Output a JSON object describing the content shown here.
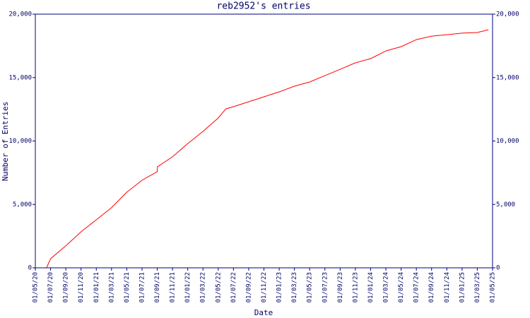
{
  "chart_data": {
    "type": "line",
    "title": "reb2952's entries",
    "x_label": "Date",
    "y_label": "Number of Entries",
    "x": [
      "15/06/20",
      "01/07/20",
      "01/09/20",
      "01/11/20",
      "01/01/21",
      "01/03/21",
      "01/05/21",
      "01/07/21",
      "01/09/21",
      "02/09/21",
      "01/11/21",
      "01/01/22",
      "01/03/22",
      "01/05/22",
      "01/06/22",
      "01/07/22",
      "01/09/22",
      "01/11/22",
      "01/01/23",
      "01/03/23",
      "01/05/23",
      "01/07/23",
      "01/09/23",
      "01/11/23",
      "01/01/24",
      "01/03/24",
      "01/05/24",
      "01/07/24",
      "01/09/24",
      "01/11/24",
      "01/01/25",
      "01/03/25",
      "15/04/25"
    ],
    "series": [
      {
        "name": "Entries",
        "color": "#ff0000",
        "values": [
          0,
          720,
          1730,
          2840,
          3790,
          4740,
          5960,
          6910,
          7580,
          7970,
          8750,
          9800,
          10750,
          11810,
          12530,
          12700,
          13090,
          13480,
          13870,
          14320,
          14650,
          15150,
          15650,
          16160,
          16490,
          17100,
          17440,
          17990,
          18270,
          18380,
          18500,
          18550,
          18770
        ]
      }
    ],
    "xlim": [
      "01/05/20",
      "01/05/25"
    ],
    "xticks": [
      "01/05/20",
      "01/07/20",
      "01/09/20",
      "01/11/20",
      "01/01/21",
      "01/03/21",
      "01/05/21",
      "01/07/21",
      "01/09/21",
      "01/11/21",
      "01/01/22",
      "01/03/22",
      "01/05/22",
      "01/07/22",
      "01/09/22",
      "01/11/22",
      "01/01/23",
      "01/03/23",
      "01/05/23",
      "01/07/23",
      "01/09/23",
      "01/11/23",
      "01/01/24",
      "01/03/24",
      "01/05/24",
      "01/07/24",
      "01/09/24",
      "01/11/24",
      "01/01/25",
      "01/03/25",
      "01/05/25"
    ],
    "ylim": [
      0,
      20000
    ],
    "yticks": [
      0,
      {
        "value": 5000,
        "label": "5,000"
      },
      {
        "value": 10000,
        "label": "10,000"
      },
      {
        "value": 15000,
        "label": "15,000"
      },
      {
        "value": 20000,
        "label": "20,000"
      }
    ],
    "axis_color": "#000080"
  }
}
